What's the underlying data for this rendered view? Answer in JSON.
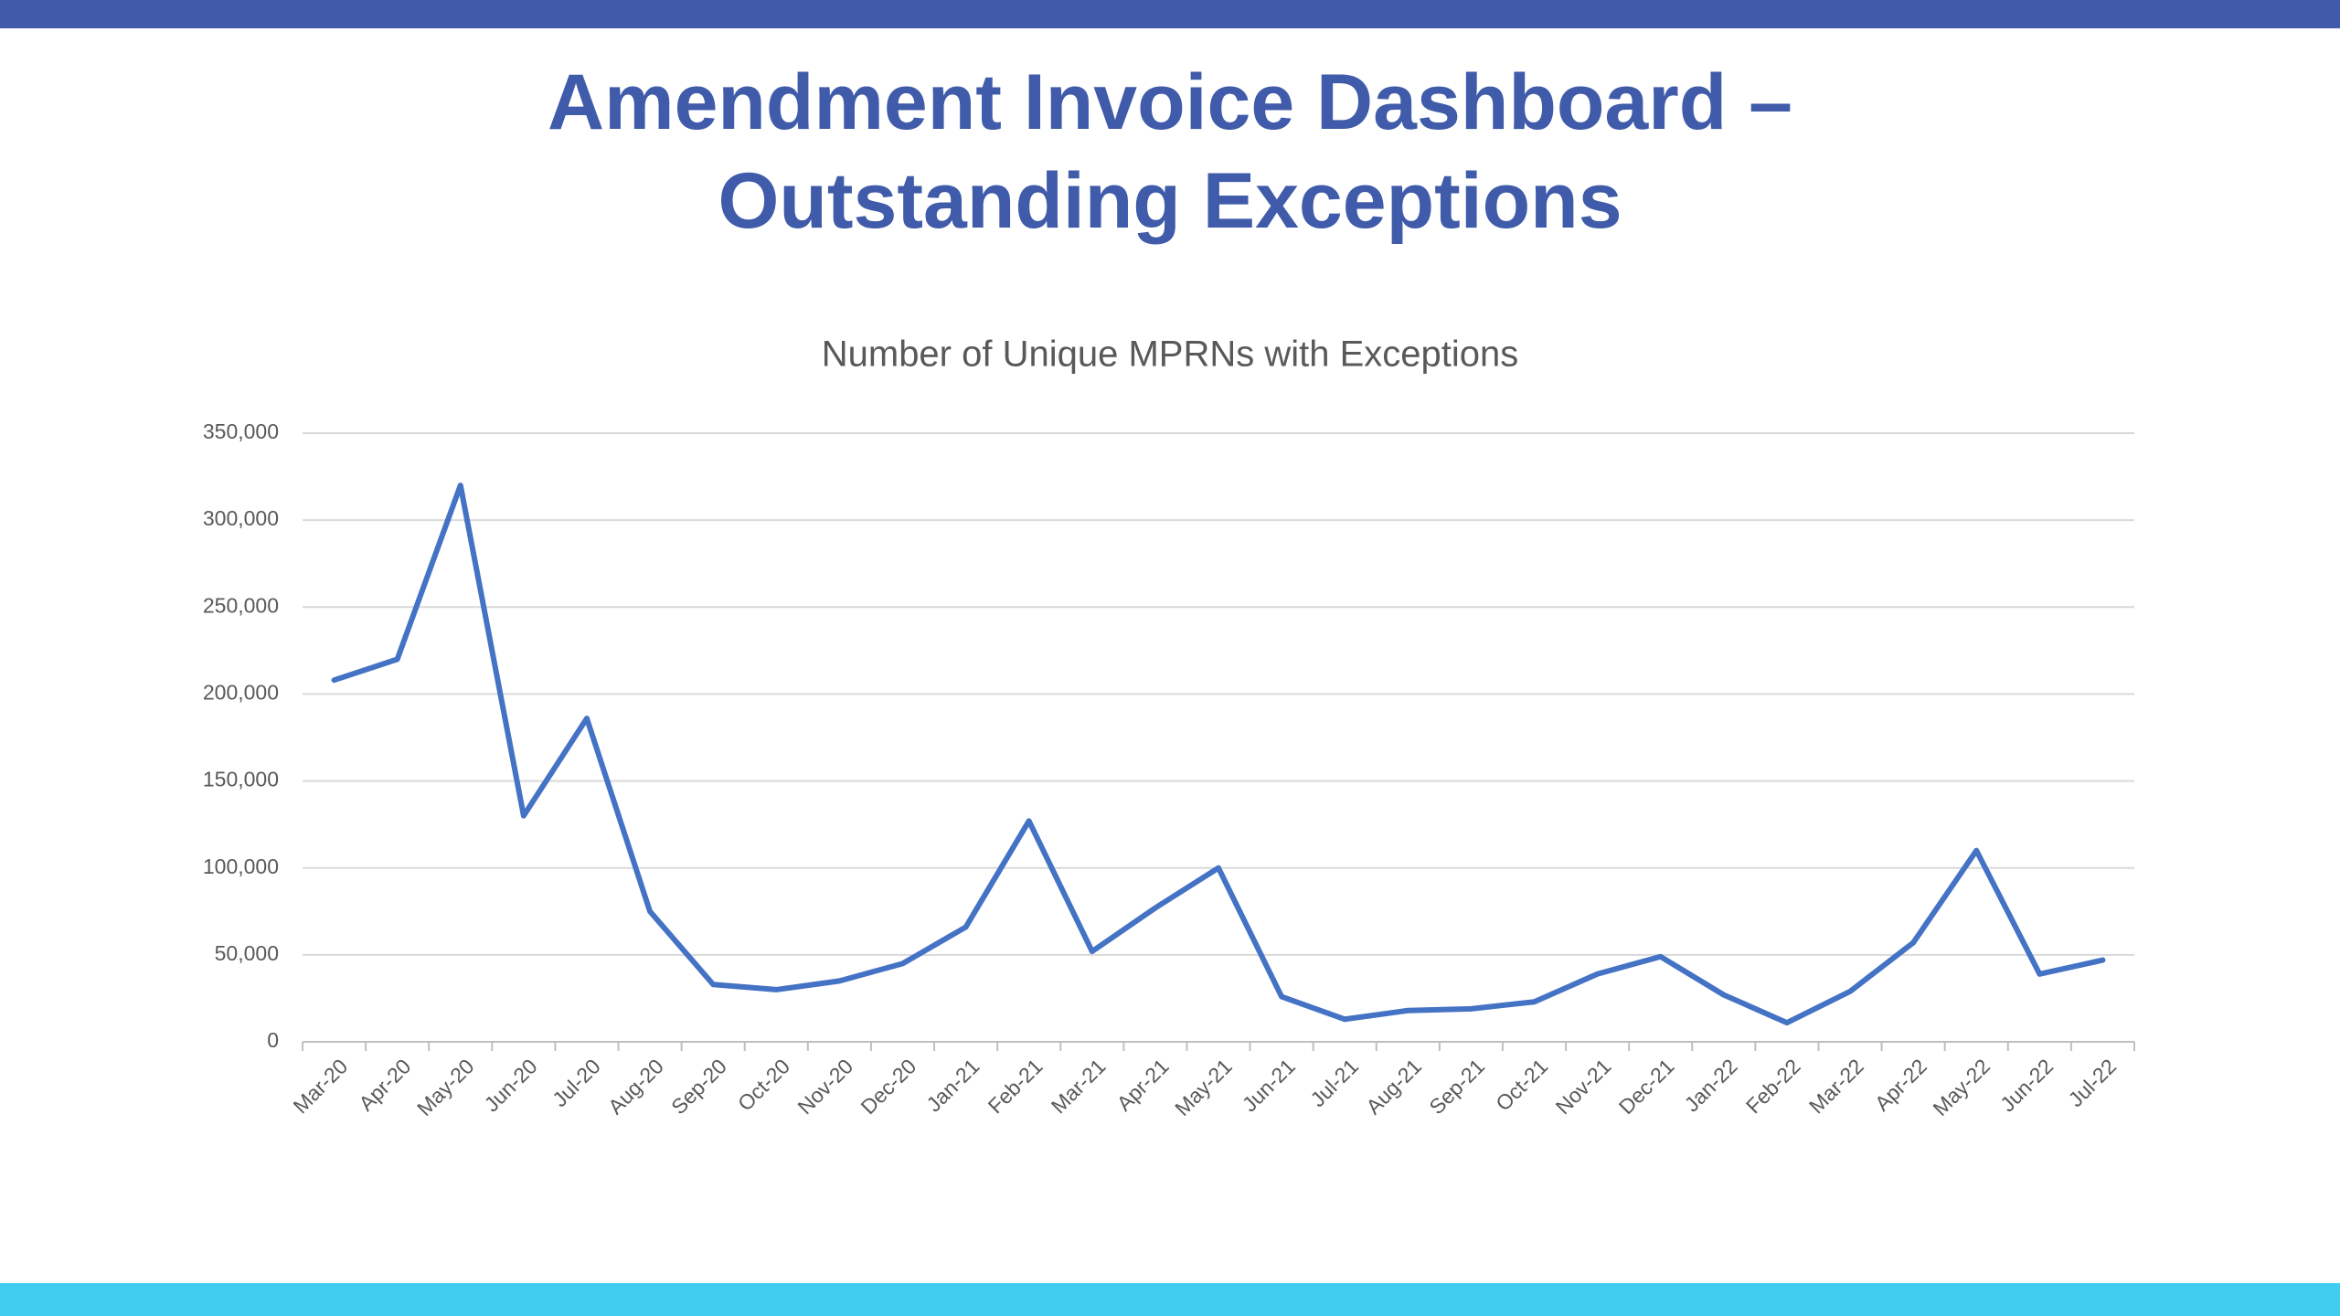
{
  "chart_data": {
    "type": "line",
    "title": "Amendment Invoice Dashboard – Outstanding Exceptions",
    "subtitle": "Number of Unique MPRNs with Exceptions",
    "categories": [
      "Mar-20",
      "Apr-20",
      "May-20",
      "Jun-20",
      "Jul-20",
      "Aug-20",
      "Sep-20",
      "Oct-20",
      "Nov-20",
      "Dec-20",
      "Jan-21",
      "Feb-21",
      "Mar-21",
      "Apr-21",
      "May-21",
      "Jun-21",
      "Jul-21",
      "Aug-21",
      "Sep-21",
      "Oct-21",
      "Nov-21",
      "Dec-21",
      "Jan-22",
      "Feb-22",
      "Mar-22",
      "Apr-22",
      "May-22",
      "Jun-22",
      "Jul-22"
    ],
    "series": [
      {
        "name": "Unique MPRNs with Exceptions",
        "color": "#4472c4",
        "values": [
          208000,
          220000,
          320000,
          130000,
          186000,
          75000,
          33000,
          30000,
          35000,
          45000,
          66000,
          127000,
          52000,
          77000,
          100000,
          26000,
          13000,
          18000,
          19000,
          23000,
          39000,
          49000,
          27000,
          11000,
          29000,
          57000,
          110000,
          39000,
          47000
        ]
      }
    ],
    "ylim": [
      0,
      350000
    ],
    "yticks": [
      0,
      {
        "value": 50000,
        "label": "50,000"
      },
      {
        "value": 100000,
        "label": "100,000"
      },
      {
        "value": 150000,
        "label": "150,000"
      },
      {
        "value": 200000,
        "label": "200,000"
      },
      {
        "value": 250000,
        "label": "250,000"
      },
      {
        "value": 300000,
        "label": "300,000"
      },
      {
        "value": 350000,
        "label": "350,000"
      }
    ],
    "grid": true
  }
}
